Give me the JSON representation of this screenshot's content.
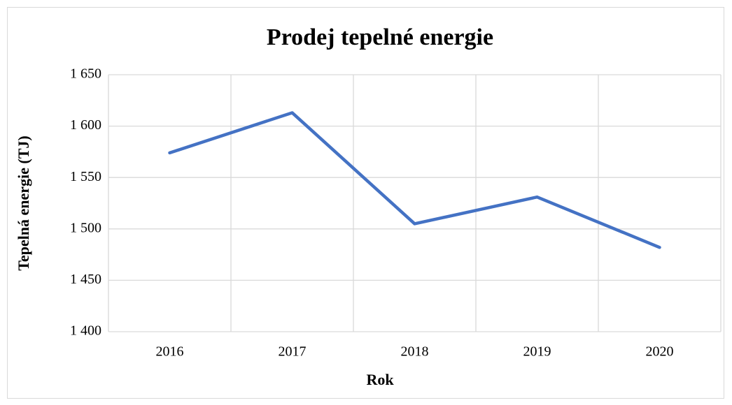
{
  "chart_data": {
    "type": "line",
    "title": "Prodej tepelné energie",
    "x_label": "Rok",
    "y_label": "Tepelná energie (TJ)",
    "categories": [
      "2016",
      "2017",
      "2018",
      "2019",
      "2020"
    ],
    "series": [
      {
        "name": "Tepelná energie",
        "color": "#4472c4",
        "values": [
          1574,
          1613,
          1505,
          1531,
          1482
        ]
      }
    ],
    "ylim": [
      1400,
      1650
    ],
    "yticks": [
      {
        "value": 1400,
        "label": "1 400"
      },
      {
        "value": 1450,
        "label": "1 450"
      },
      {
        "value": 1500,
        "label": "1 500"
      },
      {
        "value": 1550,
        "label": "1 550"
      },
      {
        "value": 1600,
        "label": "1 600"
      },
      {
        "value": 1650,
        "label": "1 650"
      }
    ],
    "grid": true
  }
}
